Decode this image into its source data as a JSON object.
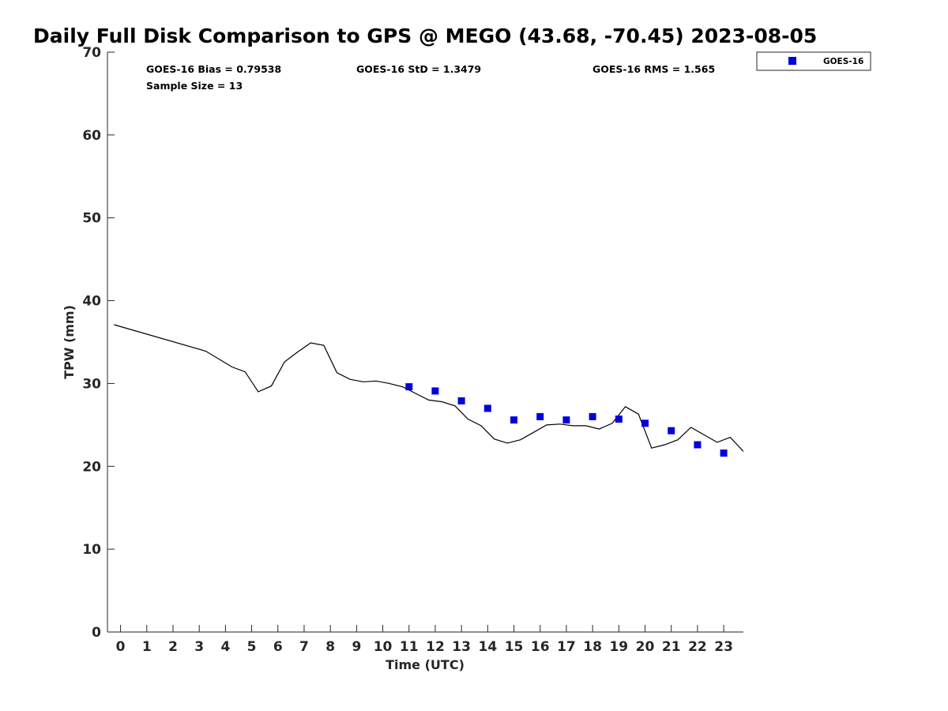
{
  "chart_data": {
    "type": "scatter",
    "title": "Daily Full Disk Comparison to GPS @ MEGO (43.68, -70.45) 2023-08-05",
    "xlabel": "Time (UTC)",
    "ylabel": "TPW (mm)",
    "xlim": [
      -0.5,
      23.75
    ],
    "ylim": [
      0,
      70
    ],
    "x_ticks": [
      0,
      1,
      2,
      3,
      4,
      5,
      6,
      7,
      8,
      9,
      10,
      11,
      12,
      13,
      14,
      15,
      16,
      17,
      18,
      19,
      20,
      21,
      22,
      23
    ],
    "x_tick_labels": [
      "0",
      "1",
      "2",
      "3",
      "4",
      "5",
      "6",
      "7",
      "8",
      "9",
      "10",
      "11",
      "12",
      "13",
      "14",
      "15",
      "16",
      "17",
      "18",
      "19",
      "20",
      "21",
      "22",
      "23"
    ],
    "y_ticks": [
      0,
      10,
      20,
      30,
      40,
      50,
      60,
      70
    ],
    "y_tick_labels": [
      "0",
      "10",
      "20",
      "30",
      "40",
      "50",
      "60",
      "70"
    ],
    "grid": false,
    "legend_position": "top-right, outside plot",
    "stats": {
      "bias": "GOES-16 Bias = 0.79538",
      "std": "GOES-16 StD = 1.3479",
      "rms": "GOES-16 RMS = 1.565",
      "sample": "Sample Size = 13"
    },
    "line_series": {
      "color": "#000000",
      "x": [
        -0.25,
        3.25,
        4.25,
        4.75,
        5.25,
        5.75,
        6.25,
        6.75,
        7.25,
        7.75,
        8.25,
        8.75,
        9.25,
        9.75,
        10.25,
        10.75,
        11.25,
        11.75,
        12.25,
        12.75,
        13.25,
        13.75,
        14.25,
        14.75,
        15.25,
        15.75,
        16.25,
        16.75,
        17.25,
        17.75,
        18.25,
        18.75,
        19.25,
        19.75,
        20.25,
        20.75,
        21.25,
        21.75,
        22.25,
        22.75,
        23.25,
        23.75
      ],
      "y": [
        37.1,
        33.9,
        32.0,
        31.4,
        29.0,
        29.7,
        32.6,
        33.8,
        34.9,
        34.6,
        31.3,
        30.5,
        30.2,
        30.3,
        30.0,
        29.6,
        28.8,
        28.0,
        27.8,
        27.3,
        25.7,
        24.9,
        23.3,
        22.8,
        23.2,
        24.1,
        25.0,
        25.1,
        24.9,
        24.9,
        24.5,
        25.2,
        27.2,
        26.3,
        22.2,
        22.6,
        23.2,
        24.7,
        23.8,
        22.9,
        23.5,
        21.8
      ]
    },
    "series": [
      {
        "name": "GOES-16",
        "color": "#0000dd",
        "marker": "square",
        "x": [
          11,
          12,
          13,
          14,
          15,
          16,
          17,
          18,
          19,
          20,
          21,
          22,
          23
        ],
        "y": [
          29.6,
          29.1,
          27.9,
          27.0,
          25.6,
          26.0,
          25.6,
          26.0,
          25.7,
          25.2,
          24.3,
          22.6,
          21.6
        ]
      }
    ]
  }
}
